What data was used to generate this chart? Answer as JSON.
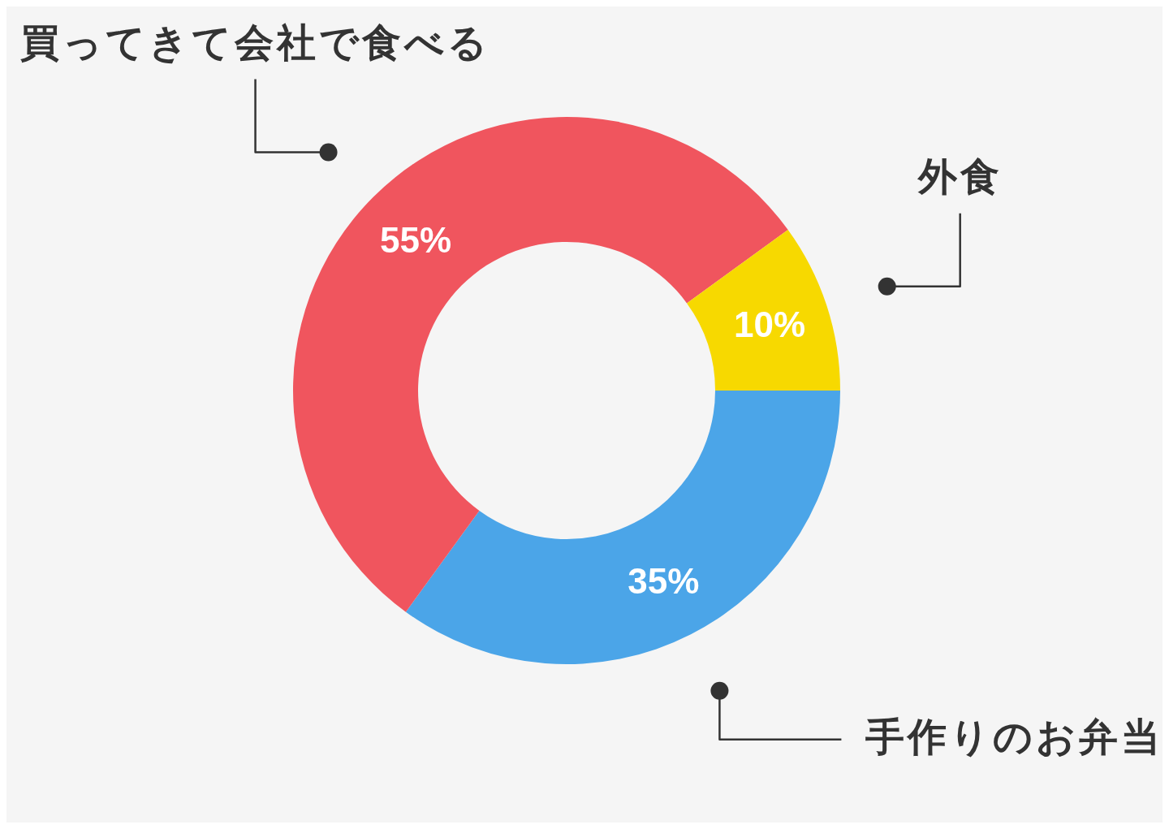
{
  "chart_data": {
    "type": "donut",
    "categories": [
      "手作りのお弁当",
      "買ってきて会社で食べる",
      "外食"
    ],
    "values": [
      35,
      55,
      10
    ],
    "colors": [
      "#4ba5e8",
      "#f0555e",
      "#f7d900"
    ],
    "value_labels": [
      "35%",
      "55%",
      "10%"
    ],
    "legend": false
  }
}
